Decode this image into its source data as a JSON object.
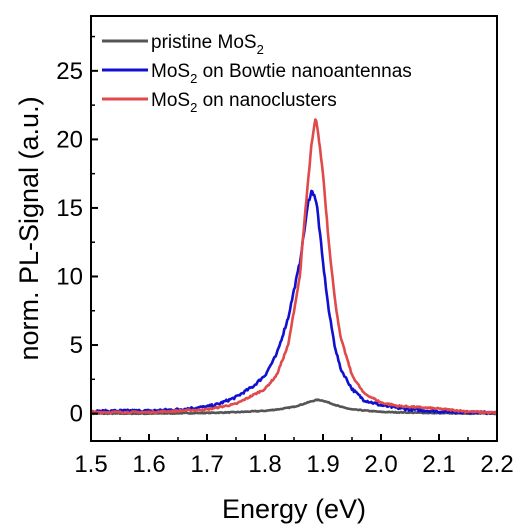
{
  "chart_data": {
    "type": "line",
    "xlabel": "Energy (eV)",
    "ylabel": "norm. PL-Signal (a.u.)",
    "xlim": [
      1.5,
      2.2
    ],
    "ylim": [
      -2,
      29
    ],
    "x_ticks": [
      "1.5",
      "1.6",
      "1.7",
      "1.8",
      "1.9",
      "2.0",
      "2.1",
      "2.2"
    ],
    "y_ticks": [
      "0",
      "5",
      "10",
      "15",
      "20",
      "25"
    ],
    "grid": false,
    "legend_position": "top-left",
    "series": [
      {
        "name": "pristine MoS2",
        "legend_main": "pristine MoS",
        "legend_sub": "2",
        "legend_rest": "",
        "color": "#555555",
        "peak_x": 1.89,
        "peak_y": 1.0,
        "x": [
          1.5,
          1.6,
          1.7,
          1.75,
          1.8,
          1.83,
          1.85,
          1.87,
          1.88,
          1.89,
          1.9,
          1.91,
          1.93,
          1.95,
          2.0,
          2.1,
          2.2
        ],
        "y": [
          0.0,
          0.0,
          0.05,
          0.1,
          0.2,
          0.35,
          0.5,
          0.75,
          0.9,
          1.0,
          0.95,
          0.8,
          0.5,
          0.3,
          0.12,
          0.03,
          0.0
        ]
      },
      {
        "name": "MoS2 on Bowtie nanoantennas",
        "legend_main": "MoS",
        "legend_sub": "2",
        "legend_rest": " on Bowtie nanoantennas",
        "color": "#1010d0",
        "peak_x": 1.882,
        "peak_y": 16.2,
        "x": [
          1.5,
          1.55,
          1.6,
          1.65,
          1.7,
          1.72,
          1.75,
          1.78,
          1.8,
          1.82,
          1.84,
          1.86,
          1.87,
          1.875,
          1.88,
          1.885,
          1.89,
          1.895,
          1.9,
          1.91,
          1.92,
          1.93,
          1.95,
          1.97,
          2.0,
          2.03,
          2.05,
          2.1,
          2.15,
          2.2
        ],
        "y": [
          0.15,
          0.2,
          0.2,
          0.3,
          0.5,
          0.7,
          1.2,
          2.0,
          2.8,
          4.3,
          7.0,
          11.0,
          14.0,
          15.5,
          16.2,
          16.0,
          15.0,
          13.0,
          11.0,
          7.5,
          5.0,
          3.3,
          1.8,
          1.0,
          0.6,
          0.4,
          0.3,
          0.15,
          0.1,
          0.05
        ]
      },
      {
        "name": "MoS2 on nanoclusters",
        "legend_main": "MoS",
        "legend_sub": "2",
        "legend_rest": " on nanoclusters",
        "color": "#e04a4a",
        "peak_x": 1.887,
        "peak_y": 21.5,
        "x": [
          1.5,
          1.6,
          1.7,
          1.75,
          1.8,
          1.82,
          1.84,
          1.86,
          1.87,
          1.88,
          1.887,
          1.89,
          1.9,
          1.91,
          1.92,
          1.93,
          1.95,
          1.97,
          2.0,
          2.03,
          2.05,
          2.1,
          2.15,
          2.2
        ],
        "y": [
          0.1,
          0.1,
          0.3,
          0.7,
          1.8,
          2.8,
          5.0,
          10.0,
          15.0,
          19.5,
          21.5,
          21.0,
          17.5,
          12.5,
          8.5,
          5.6,
          2.8,
          1.5,
          0.8,
          0.55,
          0.5,
          0.35,
          0.15,
          0.05
        ]
      }
    ]
  }
}
